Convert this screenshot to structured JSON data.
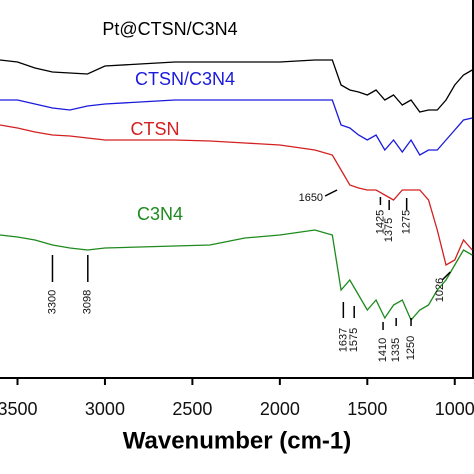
{
  "chart_data": {
    "type": "line",
    "xlabel": "Wavenumber (cm-1)",
    "xlim": [
      3600,
      890
    ],
    "xticks": [
      3500,
      3000,
      2500,
      2000,
      1500,
      1000
    ],
    "ylim": [
      0,
      378
    ],
    "x": [
      3600,
      3500,
      3400,
      3300,
      3200,
      3100,
      3000,
      2800,
      2600,
      2400,
      2200,
      2000,
      1800,
      1700,
      1650,
      1600,
      1550,
      1500,
      1450,
      1400,
      1350,
      1300,
      1250,
      1200,
      1150,
      1100,
      1050,
      1000,
      950,
      900
    ],
    "series": [
      {
        "name": "Pt@CTSN/C3N4",
        "color": "#000000",
        "values": [
          318,
          316,
          310,
          306,
          305,
          304,
          312,
          314,
          316,
          316,
          316,
          316,
          318,
          318,
          293,
          288,
          286,
          283,
          288,
          278,
          283,
          273,
          278,
          266,
          268,
          268,
          278,
          293,
          303,
          308
        ]
      },
      {
        "name": "CTSN/C3N4",
        "color": "#1a1adc",
        "values": [
          278,
          278,
          274,
          270,
          268,
          272,
          274,
          276,
          278,
          278,
          278,
          278,
          278,
          278,
          253,
          250,
          243,
          238,
          243,
          228,
          238,
          226,
          238,
          223,
          228,
          228,
          238,
          248,
          258,
          260
        ]
      },
      {
        "name": "CTSN",
        "color": "#d42020",
        "values": [
          253,
          250,
          246,
          243,
          242,
          240,
          238,
          238,
          238,
          237,
          235,
          233,
          228,
          223,
          208,
          193,
          190,
          188,
          188,
          183,
          178,
          188,
          188,
          188,
          178,
          148,
          113,
          118,
          138,
          128
        ]
      },
      {
        "name": "C3N4",
        "color": "#1e8a1e",
        "values": [
          143,
          141,
          138,
          133,
          130,
          128,
          130,
          131,
          132,
          133,
          140,
          143,
          148,
          143,
          88,
          98,
          83,
          68,
          78,
          60,
          73,
          78,
          58,
          68,
          73,
          88,
          98,
          113,
          128,
          123
        ]
      }
    ],
    "annotations": [
      {
        "text": "1650",
        "x": 1650
      },
      {
        "text": "1425",
        "x": 1425
      },
      {
        "text": "1375",
        "x": 1375
      },
      {
        "text": "1275",
        "x": 1275
      },
      {
        "text": "1026",
        "x": 1026
      },
      {
        "text": "3300",
        "x": 3300
      },
      {
        "text": "3098",
        "x": 3098
      },
      {
        "text": "1637",
        "x": 1637
      },
      {
        "text": "1575",
        "x": 1575
      },
      {
        "text": "1410",
        "x": 1410
      },
      {
        "text": "1335",
        "x": 1335
      },
      {
        "text": "1250",
        "x": 1250
      }
    ]
  }
}
